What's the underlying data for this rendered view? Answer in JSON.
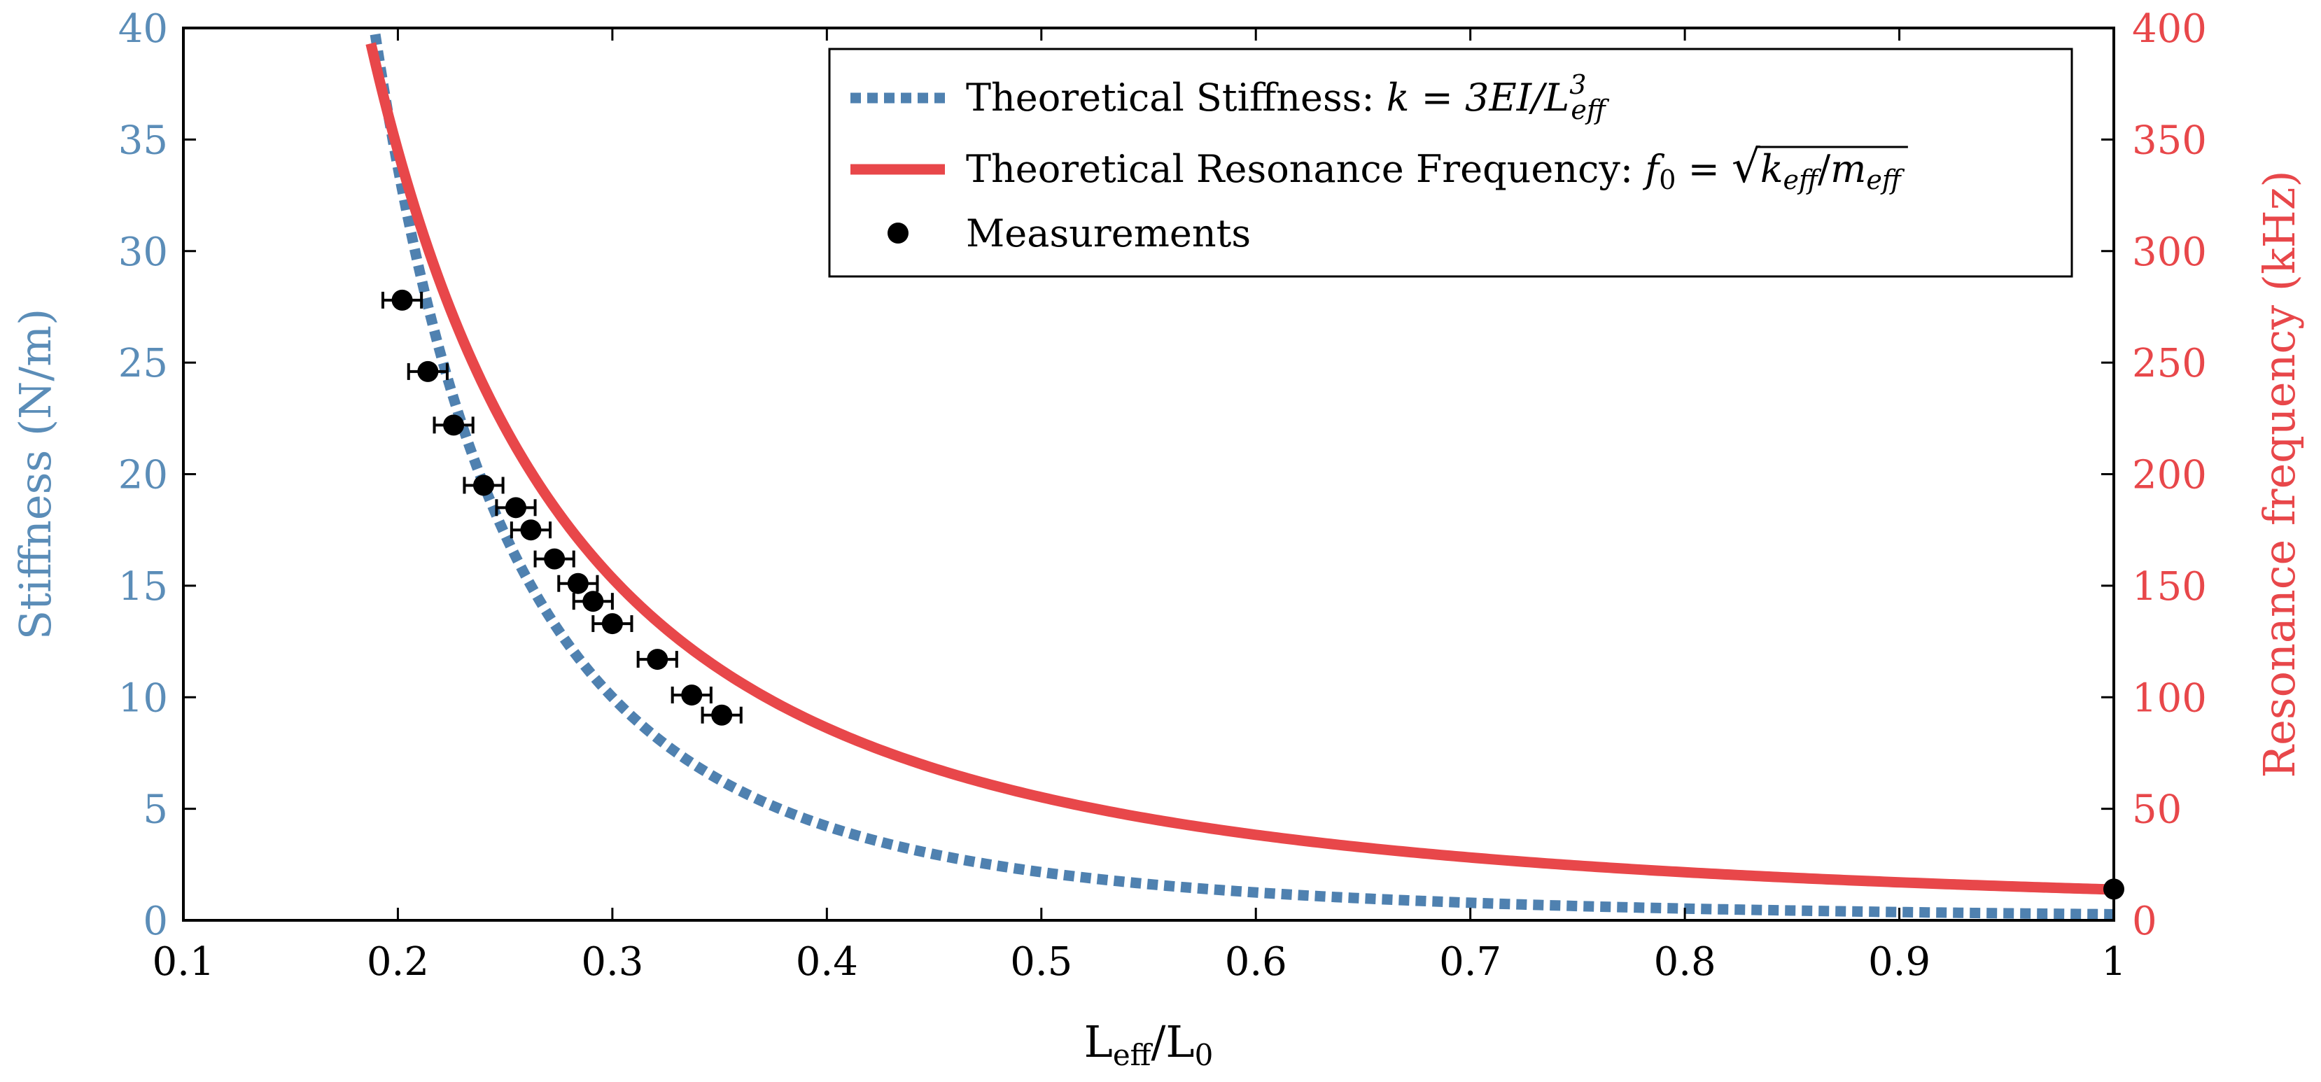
{
  "chart_data": {
    "type": "line",
    "title": "",
    "xlabel": "L",
    "xlabel_sub1": "eff",
    "xlabel_mid": "/L",
    "xlabel_sub2": "0",
    "ylabel_left": "Stiffness (N/m)",
    "ylabel_right": "Resonance frequency (kHz)",
    "xlim": [
      0.1,
      1.0
    ],
    "ylim_left": [
      0,
      40
    ],
    "ylim_right": [
      0,
      400
    ],
    "x_ticks": [
      0.1,
      0.2,
      0.3,
      0.4,
      0.5,
      0.6,
      0.7,
      0.8,
      0.9,
      1.0
    ],
    "x_tick_labels": [
      "0.1",
      "0.2",
      "0.3",
      "0.4",
      "0.5",
      "0.6",
      "0.7",
      "0.8",
      "0.9",
      "1"
    ],
    "y_left_ticks": [
      0,
      5,
      10,
      15,
      20,
      25,
      30,
      35,
      40
    ],
    "y_left_tick_labels": [
      "0",
      "5",
      "10",
      "15",
      "20",
      "25",
      "30",
      "35",
      "40"
    ],
    "y_right_ticks": [
      0,
      50,
      100,
      150,
      200,
      250,
      300,
      350,
      400
    ],
    "y_right_tick_labels": [
      "0",
      "50",
      "100",
      "150",
      "200",
      "250",
      "300",
      "350",
      "400"
    ],
    "legend": {
      "position": "top-right",
      "stiffness_label": "Theoretical Stiffness: ",
      "stiffness_formula": "k = 3EI/L",
      "stiffness_formula_sup": "3",
      "stiffness_formula_sub": "eff",
      "frequency_label": "Theoretical Resonance Frequency: ",
      "frequency_formula_lhs": "f",
      "frequency_formula_lhs_sub": "0",
      "frequency_formula_eq": " = ",
      "frequency_formula_k": "k",
      "frequency_formula_k_sub": "eff",
      "frequency_formula_slash": "/",
      "frequency_formula_m": "m",
      "frequency_formula_m_sub": "eff",
      "measurements_label": "Measurements"
    },
    "series": [
      {
        "name": "Theoretical Stiffness",
        "axis": "left",
        "style": "dotted",
        "color": "#4f81b0",
        "model": "k = k1 * (L0/Leff)^3",
        "k1": 0.27,
        "x_range": [
          0.175,
          1.0
        ]
      },
      {
        "name": "Theoretical Resonance Frequency",
        "axis": "right",
        "style": "solid",
        "color": "#e8474a",
        "model": "f = f1 * (L0/Leff)^2",
        "f1": 13.8,
        "x_range": [
          0.175,
          1.0
        ]
      },
      {
        "name": "Measurements",
        "axis": "right",
        "style": "markers",
        "color": "#000000",
        "x": [
          0.202,
          0.214,
          0.226,
          0.24,
          0.255,
          0.262,
          0.273,
          0.284,
          0.291,
          0.3,
          0.321,
          0.337,
          0.351,
          1.0
        ],
        "y": [
          278,
          246,
          222,
          195,
          185,
          175,
          162,
          151,
          143,
          133,
          117,
          101,
          92,
          14
        ],
        "x_error": [
          0.009,
          0.009,
          0.009,
          0.009,
          0.009,
          0.009,
          0.009,
          0.009,
          0.009,
          0.009,
          0.009,
          0.009,
          0.009,
          0
        ]
      }
    ]
  },
  "colors": {
    "left_axis": "#5b8db8",
    "right_axis": "#e8474a",
    "stiffness_line": "#4f81b0",
    "frequency_line": "#e8474a",
    "markers": "#000000"
  }
}
